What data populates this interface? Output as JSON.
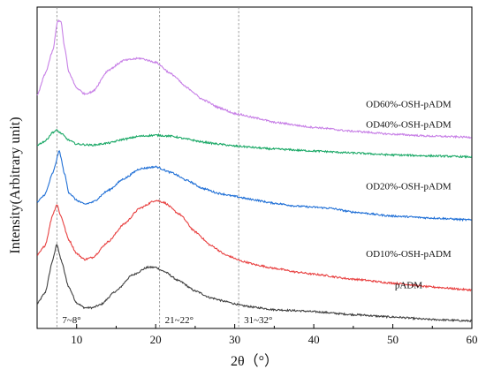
{
  "chart_data": {
    "type": "line",
    "title": "",
    "xlabel": "2θ（°）",
    "ylabel": "Intensity(Arbitrary unit)",
    "xlim": [
      5,
      60
    ],
    "xticks": [
      10,
      20,
      30,
      40,
      50,
      60
    ],
    "y_tick_labels": false,
    "grid": false,
    "vertical_reference_lines": [
      {
        "x": 7.5,
        "label": "7~8°"
      },
      {
        "x": 20.5,
        "label": "21~22°"
      },
      {
        "x": 30.5,
        "label": "31~32°"
      }
    ],
    "series": [
      {
        "name": "pADM",
        "color": "#3f3f3f",
        "points": [
          [
            5,
            0.95
          ],
          [
            6,
            1.5
          ],
          [
            7,
            3.2
          ],
          [
            7.5,
            4.0
          ],
          [
            8,
            3.2
          ],
          [
            9,
            1.8
          ],
          [
            10,
            1.0
          ],
          [
            11,
            0.75
          ],
          [
            12,
            0.75
          ],
          [
            13,
            0.9
          ],
          [
            15,
            1.6
          ],
          [
            17,
            2.4
          ],
          [
            19,
            2.8
          ],
          [
            20,
            2.8
          ],
          [
            21,
            2.6
          ],
          [
            23,
            2.1
          ],
          [
            25,
            1.6
          ],
          [
            27,
            1.25
          ],
          [
            29,
            1.05
          ],
          [
            30,
            0.95
          ],
          [
            31,
            0.85
          ],
          [
            33,
            0.75
          ],
          [
            35,
            0.65
          ],
          [
            38,
            0.6
          ],
          [
            40,
            0.55
          ],
          [
            45,
            0.4
          ],
          [
            50,
            0.28
          ],
          [
            55,
            0.15
          ],
          [
            60,
            0.08
          ]
        ]
      },
      {
        "name": "OD10%-OSH-pADM",
        "color": "#e84040",
        "points": [
          [
            5,
            3.4
          ],
          [
            6,
            3.9
          ],
          [
            7,
            5.5
          ],
          [
            7.5,
            6.0
          ],
          [
            8,
            5.4
          ],
          [
            9,
            4.2
          ],
          [
            10,
            3.5
          ],
          [
            11,
            3.2
          ],
          [
            12,
            3.3
          ],
          [
            14,
            4.1
          ],
          [
            16,
            5.0
          ],
          [
            18,
            5.8
          ],
          [
            20,
            6.2
          ],
          [
            21,
            6.1
          ],
          [
            23,
            5.5
          ],
          [
            25,
            4.6
          ],
          [
            27,
            3.9
          ],
          [
            29,
            3.4
          ],
          [
            31,
            3.1
          ],
          [
            33,
            2.9
          ],
          [
            35,
            2.75
          ],
          [
            38,
            2.55
          ],
          [
            40,
            2.45
          ],
          [
            45,
            2.2
          ],
          [
            50,
            2.0
          ],
          [
            55,
            1.8
          ],
          [
            60,
            1.65
          ]
        ]
      },
      {
        "name": "OD20%-OSH-pADM",
        "color": "#1f6fd6",
        "points": [
          [
            5,
            6.1
          ],
          [
            6,
            6.5
          ],
          [
            7,
            7.6
          ],
          [
            7.8,
            8.7
          ],
          [
            8.5,
            7.5
          ],
          [
            9,
            6.6
          ],
          [
            10,
            6.2
          ],
          [
            11,
            6.0
          ],
          [
            12,
            6.1
          ],
          [
            14,
            6.7
          ],
          [
            16,
            7.3
          ],
          [
            18,
            7.8
          ],
          [
            20,
            7.9
          ],
          [
            22,
            7.6
          ],
          [
            24,
            7.2
          ],
          [
            26,
            6.8
          ],
          [
            28,
            6.55
          ],
          [
            30,
            6.4
          ],
          [
            32,
            6.25
          ],
          [
            35,
            6.05
          ],
          [
            38,
            5.9
          ],
          [
            40,
            5.85
          ],
          [
            42,
            5.8
          ],
          [
            45,
            5.6
          ],
          [
            50,
            5.4
          ],
          [
            55,
            5.3
          ],
          [
            60,
            5.2
          ]
        ]
      },
      {
        "name": "OD40%-OSH-pADM",
        "color": "#1aa866",
        "points": [
          [
            5,
            9.0
          ],
          [
            6,
            9.2
          ],
          [
            7,
            9.65
          ],
          [
            7.5,
            9.75
          ],
          [
            8,
            9.6
          ],
          [
            9,
            9.25
          ],
          [
            10,
            9.05
          ],
          [
            12,
            9.0
          ],
          [
            14,
            9.1
          ],
          [
            16,
            9.3
          ],
          [
            18,
            9.45
          ],
          [
            20,
            9.5
          ],
          [
            22,
            9.45
          ],
          [
            24,
            9.3
          ],
          [
            26,
            9.15
          ],
          [
            28,
            9.05
          ],
          [
            30,
            8.95
          ],
          [
            35,
            8.8
          ],
          [
            40,
            8.7
          ],
          [
            45,
            8.6
          ],
          [
            50,
            8.5
          ],
          [
            55,
            8.45
          ],
          [
            60,
            8.4
          ]
        ]
      },
      {
        "name": "OD60%-OSH-pADM",
        "color": "#c77fe6",
        "points": [
          [
            5,
            11.5
          ],
          [
            6,
            12.6
          ],
          [
            7,
            13.8
          ],
          [
            7.6,
            15.3
          ],
          [
            8,
            15.3
          ],
          [
            8.5,
            13.9
          ],
          [
            9,
            12.7
          ],
          [
            10,
            11.9
          ],
          [
            11,
            11.6
          ],
          [
            12,
            11.7
          ],
          [
            14,
            12.8
          ],
          [
            16,
            13.3
          ],
          [
            18,
            13.4
          ],
          [
            20,
            13.2
          ],
          [
            22,
            12.6
          ],
          [
            24,
            11.9
          ],
          [
            26,
            11.3
          ],
          [
            28,
            10.9
          ],
          [
            30,
            10.6
          ],
          [
            33,
            10.35
          ],
          [
            35,
            10.15
          ],
          [
            40,
            9.9
          ],
          [
            45,
            9.7
          ],
          [
            50,
            9.55
          ],
          [
            55,
            9.45
          ],
          [
            60,
            9.4
          ]
        ]
      }
    ],
    "labels": [
      {
        "text": "OD60%-OSH-pADM",
        "series": "OD60%-OSH-pADM"
      },
      {
        "text": "OD40%-OSH-pADM",
        "series": "OD40%-OSH-pADM"
      },
      {
        "text": "OD20%-OSH-pADM",
        "series": "OD20%-OSH-pADM"
      },
      {
        "text": "OD10%-OSH-pADM",
        "series": "OD10%-OSH-pADM"
      },
      {
        "text": "pADM",
        "series": "pADM"
      }
    ]
  }
}
